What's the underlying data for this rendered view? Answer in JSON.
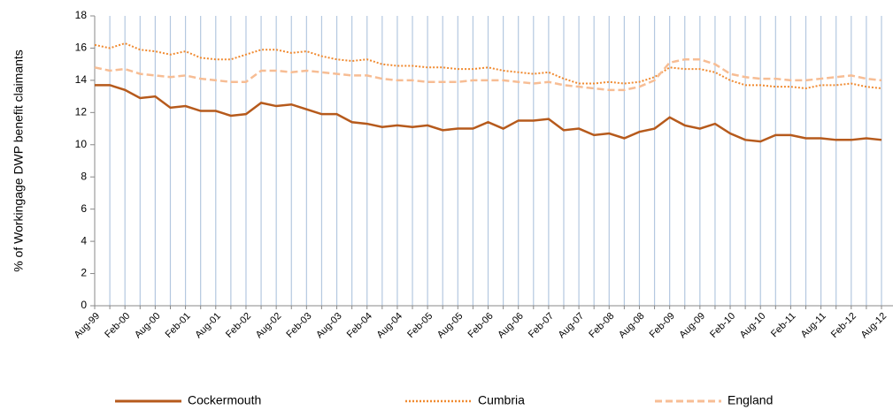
{
  "chart_data": {
    "type": "line",
    "y_label": "% of Workingage DWP benefit claimants",
    "categories": [
      "Aug-99",
      null,
      "Feb-00",
      null,
      "Aug-00",
      null,
      "Feb-01",
      null,
      "Aug-01",
      null,
      "Feb-02",
      null,
      "Aug-02",
      null,
      "Feb-03",
      null,
      "Aug-03",
      null,
      "Feb-04",
      null,
      "Aug-04",
      null,
      "Feb-05",
      null,
      "Aug-05",
      null,
      "Feb-06",
      null,
      "Aug-06",
      null,
      "Feb-07",
      null,
      "Aug-07",
      null,
      "Feb-08",
      null,
      "Aug-08",
      null,
      "Feb-09",
      null,
      "Aug-09",
      null,
      "Feb-10",
      null,
      "Aug-10",
      null,
      "Feb-11",
      null,
      "Aug-11",
      null,
      "Feb-12",
      null,
      "Aug-12"
    ],
    "series": [
      {
        "name": "Cockermouth",
        "color": "#b65a1c",
        "style": "solid",
        "values": [
          13.7,
          13.7,
          13.4,
          12.9,
          13.0,
          12.3,
          12.4,
          12.1,
          12.1,
          11.8,
          11.9,
          12.6,
          12.4,
          12.5,
          12.2,
          11.9,
          11.9,
          11.4,
          11.3,
          11.1,
          11.2,
          11.1,
          11.2,
          10.9,
          11.0,
          11.0,
          11.4,
          11.0,
          11.5,
          11.5,
          11.6,
          10.9,
          11.0,
          10.6,
          10.7,
          10.4,
          10.8,
          11.0,
          11.7,
          11.2,
          11.0,
          11.3,
          10.7,
          10.3,
          10.2,
          10.6,
          10.6,
          10.4,
          10.4,
          10.3,
          10.3,
          10.4,
          10.3
        ]
      },
      {
        "name": "Cumbria",
        "color": "#f08a30",
        "style": "dotted",
        "values": [
          16.2,
          16.0,
          16.3,
          15.9,
          15.8,
          15.6,
          15.8,
          15.4,
          15.3,
          15.3,
          15.6,
          15.9,
          15.9,
          15.7,
          15.8,
          15.5,
          15.3,
          15.2,
          15.3,
          15.0,
          14.9,
          14.9,
          14.8,
          14.8,
          14.7,
          14.7,
          14.8,
          14.6,
          14.5,
          14.4,
          14.5,
          14.1,
          13.8,
          13.8,
          13.9,
          13.8,
          13.9,
          14.2,
          14.8,
          14.7,
          14.7,
          14.5,
          14.0,
          13.7,
          13.7,
          13.6,
          13.6,
          13.5,
          13.7,
          13.7,
          13.8,
          13.6,
          13.5
        ]
      },
      {
        "name": "England",
        "color": "#f7bd94",
        "style": "dashed",
        "values": [
          14.8,
          14.6,
          14.7,
          14.4,
          14.3,
          14.2,
          14.3,
          14.1,
          14.0,
          13.9,
          13.9,
          14.6,
          14.6,
          14.5,
          14.6,
          14.5,
          14.4,
          14.3,
          14.3,
          14.1,
          14.0,
          14.0,
          13.9,
          13.9,
          13.9,
          14.0,
          14.0,
          14.0,
          13.9,
          13.8,
          13.9,
          13.7,
          13.6,
          13.5,
          13.4,
          13.4,
          13.6,
          14.0,
          15.1,
          15.3,
          15.3,
          15.0,
          14.4,
          14.2,
          14.1,
          14.1,
          14.0,
          14.0,
          14.1,
          14.2,
          14.3,
          14.1,
          14.0
        ]
      }
    ],
    "ylim": [
      0,
      18
    ],
    "yticks": [
      0,
      2,
      4,
      6,
      8,
      10,
      12,
      14,
      16,
      18
    ],
    "grid": true,
    "legend": "bottom"
  }
}
